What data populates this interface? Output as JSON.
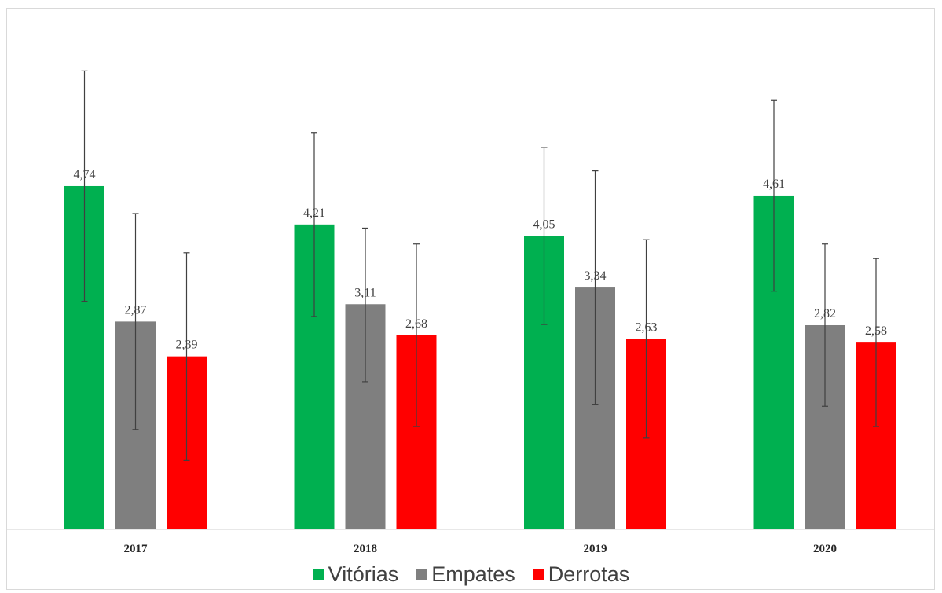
{
  "chart_data": {
    "type": "bar",
    "categories": [
      "2017",
      "2018",
      "2019",
      "2020"
    ],
    "series": [
      {
        "name": "Vitórias",
        "color": "#00b050",
        "values": [
          4.74,
          4.21,
          4.05,
          4.61
        ],
        "labels": [
          "4,74",
          "4,21",
          "4,05",
          "4,61"
        ],
        "err_low": [
          3.15,
          2.94,
          2.83,
          3.29
        ],
        "err_high": [
          6.33,
          5.48,
          5.27,
          5.93
        ]
      },
      {
        "name": "Empates",
        "color": "#7f7f7f",
        "values": [
          2.87,
          3.11,
          3.34,
          2.82
        ],
        "labels": [
          "2,87",
          "3,11",
          "3,34",
          "2,82"
        ],
        "err_low": [
          1.38,
          2.04,
          1.72,
          1.7
        ],
        "err_high": [
          4.36,
          4.16,
          4.95,
          3.94
        ]
      },
      {
        "name": "Derrotas",
        "color": "#ff0000",
        "values": [
          2.39,
          2.68,
          2.63,
          2.58
        ],
        "labels": [
          "2,39",
          "2,68",
          "2,63",
          "2,58"
        ],
        "err_low": [
          0.95,
          1.42,
          1.26,
          1.42
        ],
        "err_high": [
          3.82,
          3.94,
          4.0,
          3.74
        ]
      }
    ],
    "ylim": [
      0,
      6.5
    ],
    "grid": false,
    "legend_position": "bottom"
  }
}
